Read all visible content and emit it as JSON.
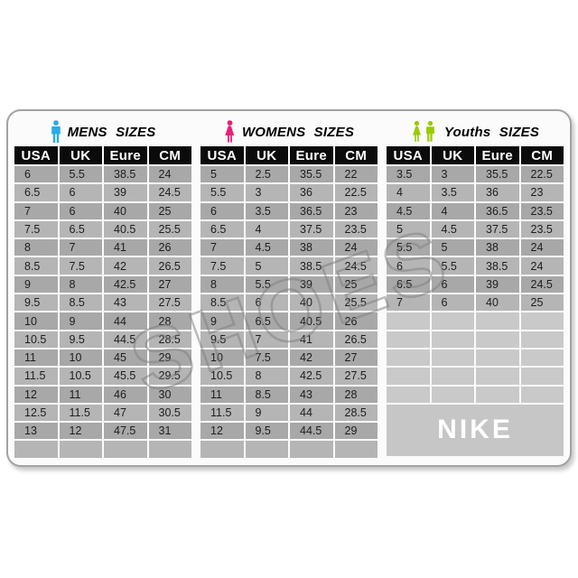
{
  "card": {
    "brand_label": "NIKE",
    "watermark_text": "SHOES"
  },
  "colors": {
    "mens_icon": "#29ABE2",
    "womens_icon": "#EC1E79",
    "youths_icon": "#97CC00",
    "header_bg": "#0B0B0B",
    "header_text": "#FFFFFF",
    "row_dark": "#A8A8A8",
    "row_light": "#B5B5B5",
    "empty_row": "#C9C9C9",
    "nike_block_bg": "#C6C6C6",
    "nike_text": "#FFFFFF"
  },
  "sections": [
    {
      "id": "mens",
      "title": "MENS SIZES",
      "icon_color": "#29ABE2",
      "columns": [
        "USA",
        "UK",
        "Eure",
        "CM"
      ],
      "empty_rows": 1,
      "rows": [
        [
          "6",
          "5.5",
          "38.5",
          "24"
        ],
        [
          "6.5",
          "6",
          "39",
          "24.5"
        ],
        [
          "7",
          "6",
          "40",
          "25"
        ],
        [
          "7.5",
          "6.5",
          "40.5",
          "25.5"
        ],
        [
          "8",
          "7",
          "41",
          "26"
        ],
        [
          "8.5",
          "7.5",
          "42",
          "26.5"
        ],
        [
          "9",
          "8",
          "42.5",
          "27"
        ],
        [
          "9.5",
          "8.5",
          "43",
          "27.5"
        ],
        [
          "10",
          "9",
          "44",
          "28"
        ],
        [
          "10.5",
          "9.5",
          "44.5",
          "28.5"
        ],
        [
          "11",
          "10",
          "45",
          "29"
        ],
        [
          "11.5",
          "10.5",
          "45.5",
          "29.5"
        ],
        [
          "12",
          "11",
          "46",
          "30"
        ],
        [
          "12.5",
          "11.5",
          "47",
          "30.5"
        ],
        [
          "13",
          "12",
          "47.5",
          "31"
        ]
      ]
    },
    {
      "id": "womens",
      "title": "WOMENS SIZES",
      "icon_color": "#EC1E79",
      "columns": [
        "USA",
        "UK",
        "Eure",
        "CM"
      ],
      "empty_rows": 1,
      "rows": [
        [
          "5",
          "2.5",
          "35.5",
          "22"
        ],
        [
          "5.5",
          "3",
          "36",
          "22.5"
        ],
        [
          "6",
          "3.5",
          "36.5",
          "23"
        ],
        [
          "6.5",
          "4",
          "37.5",
          "23.5"
        ],
        [
          "7",
          "4.5",
          "38",
          "24"
        ],
        [
          "7.5",
          "5",
          "38.5",
          "24.5"
        ],
        [
          "8",
          "5.5",
          "39",
          "25"
        ],
        [
          "8.5",
          "6",
          "40",
          "25.5"
        ],
        [
          "9",
          "6.5",
          "40.5",
          "26"
        ],
        [
          "9.5",
          "7",
          "41",
          "26.5"
        ],
        [
          "10",
          "7.5",
          "42",
          "27"
        ],
        [
          "10.5",
          "8",
          "42.5",
          "27.5"
        ],
        [
          "11",
          "8.5",
          "43",
          "28"
        ],
        [
          "11.5",
          "9",
          "44",
          "28.5"
        ],
        [
          "12",
          "9.5",
          "44.5",
          "29"
        ]
      ]
    },
    {
      "id": "youths",
      "title": "Youths SIZES",
      "icon_color": "#97CC00",
      "columns": [
        "USA",
        "UK",
        "Eure",
        "CM"
      ],
      "empty_rows": 5,
      "rows": [
        [
          "3.5",
          "3",
          "35.5",
          "22.5"
        ],
        [
          "4",
          "3.5",
          "36",
          "23"
        ],
        [
          "4.5",
          "4",
          "36.5",
          "23.5"
        ],
        [
          "5",
          "4.5",
          "37.5",
          "23.5"
        ],
        [
          "5.5",
          "5",
          "38",
          "24"
        ],
        [
          "6",
          "5.5",
          "38.5",
          "24"
        ],
        [
          "6.5",
          "6",
          "39",
          "24.5"
        ],
        [
          "7",
          "6",
          "40",
          "25"
        ]
      ]
    }
  ]
}
